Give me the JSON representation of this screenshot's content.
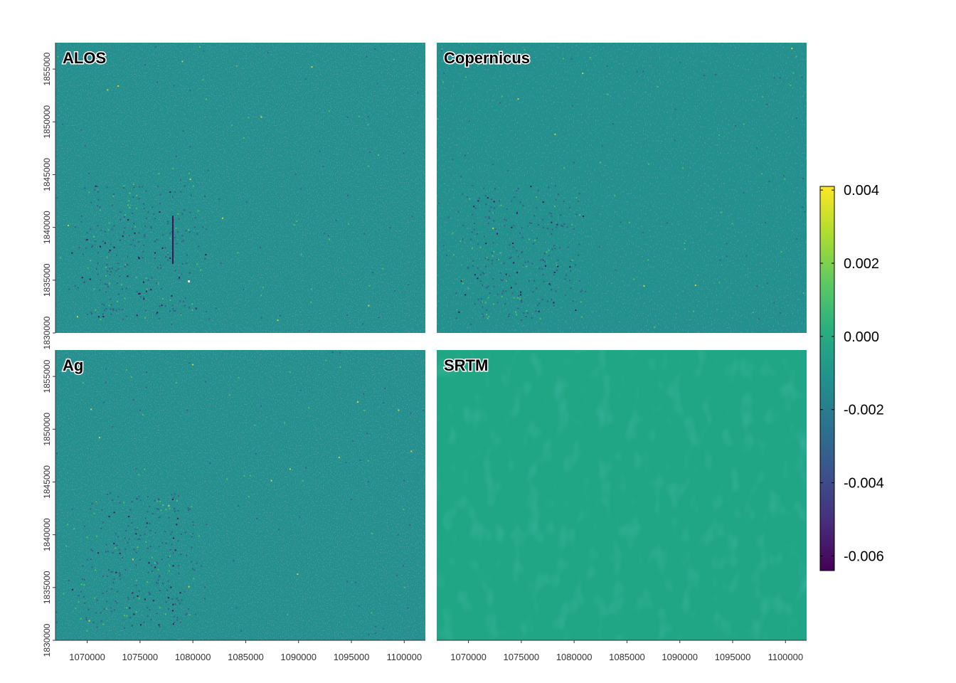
{
  "chart_data": {
    "type": "heatmap",
    "layout": "facet grid 2x2",
    "panels": [
      {
        "name": "ALOS"
      },
      {
        "name": "Copernicus"
      },
      {
        "name": "Ag"
      },
      {
        "name": "SRTM"
      }
    ],
    "x_ticks": [
      "1070000",
      "1075000",
      "1080000",
      "1085000",
      "1090000",
      "1095000",
      "1100000"
    ],
    "x_tick_values": [
      1070000,
      1075000,
      1080000,
      1085000,
      1090000,
      1095000,
      1100000
    ],
    "y_ticks": [
      "1830000",
      "1835000",
      "1840000",
      "1845000",
      "1850000",
      "1855000"
    ],
    "y_tick_values": [
      1830000,
      1835000,
      1840000,
      1845000,
      1850000,
      1855000
    ],
    "xlim": [
      1067000,
      1102000
    ],
    "ylim": [
      1830000,
      1857500
    ],
    "colorbar": {
      "palette": "viridis",
      "limits": [
        -0.0064,
        0.0041
      ],
      "ticks": [
        "0.004",
        "0.002",
        "0.000",
        "-0.002",
        "-0.004",
        "-0.006"
      ],
      "tick_values": [
        0.004,
        0.002,
        0.0,
        -0.002,
        -0.004,
        -0.006
      ]
    },
    "colors": {
      "background_fill": "#22908c",
      "srtm_fill": "#21a685",
      "speckle_dark": "#3b528b",
      "speckle_darkest": "#440154",
      "speckle_light": "#5ec962",
      "speckle_bright": "#fde725"
    },
    "xlabel": "",
    "ylabel": ""
  }
}
